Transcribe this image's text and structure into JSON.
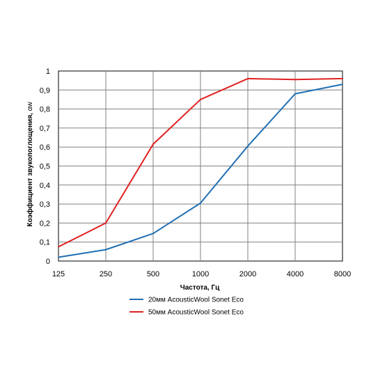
{
  "chart_data": {
    "type": "line",
    "xlabel": "Частота,  Гц",
    "ylabel": "Коэффициент звукопоглощения, αw",
    "ylabel_main": "Коэффициент звукопоглощения, ",
    "ylabel_symbol": "αw",
    "categories": [
      "125",
      "250",
      "500",
      "1000",
      "2000",
      "4000",
      "8000"
    ],
    "ylim": [
      0,
      1
    ],
    "yticks": [
      "0",
      "0,1",
      "0,2",
      "0,3",
      "0,4",
      "0,5",
      "0,6",
      "0,7",
      "0,8",
      "0,9",
      "1"
    ],
    "grid": true,
    "legend_position": "bottom",
    "series": [
      {
        "name": "20мм AcousticWool Sonet Eco",
        "color": "#1f6fb4",
        "values": [
          0.02,
          0.06,
          0.145,
          0.305,
          0.605,
          0.88,
          0.93
        ]
      },
      {
        "name": "50мм AcousticWool Sonet Eco",
        "color": "#e02020",
        "values": [
          0.075,
          0.2,
          0.615,
          0.85,
          0.96,
          0.955,
          0.96
        ]
      }
    ]
  }
}
